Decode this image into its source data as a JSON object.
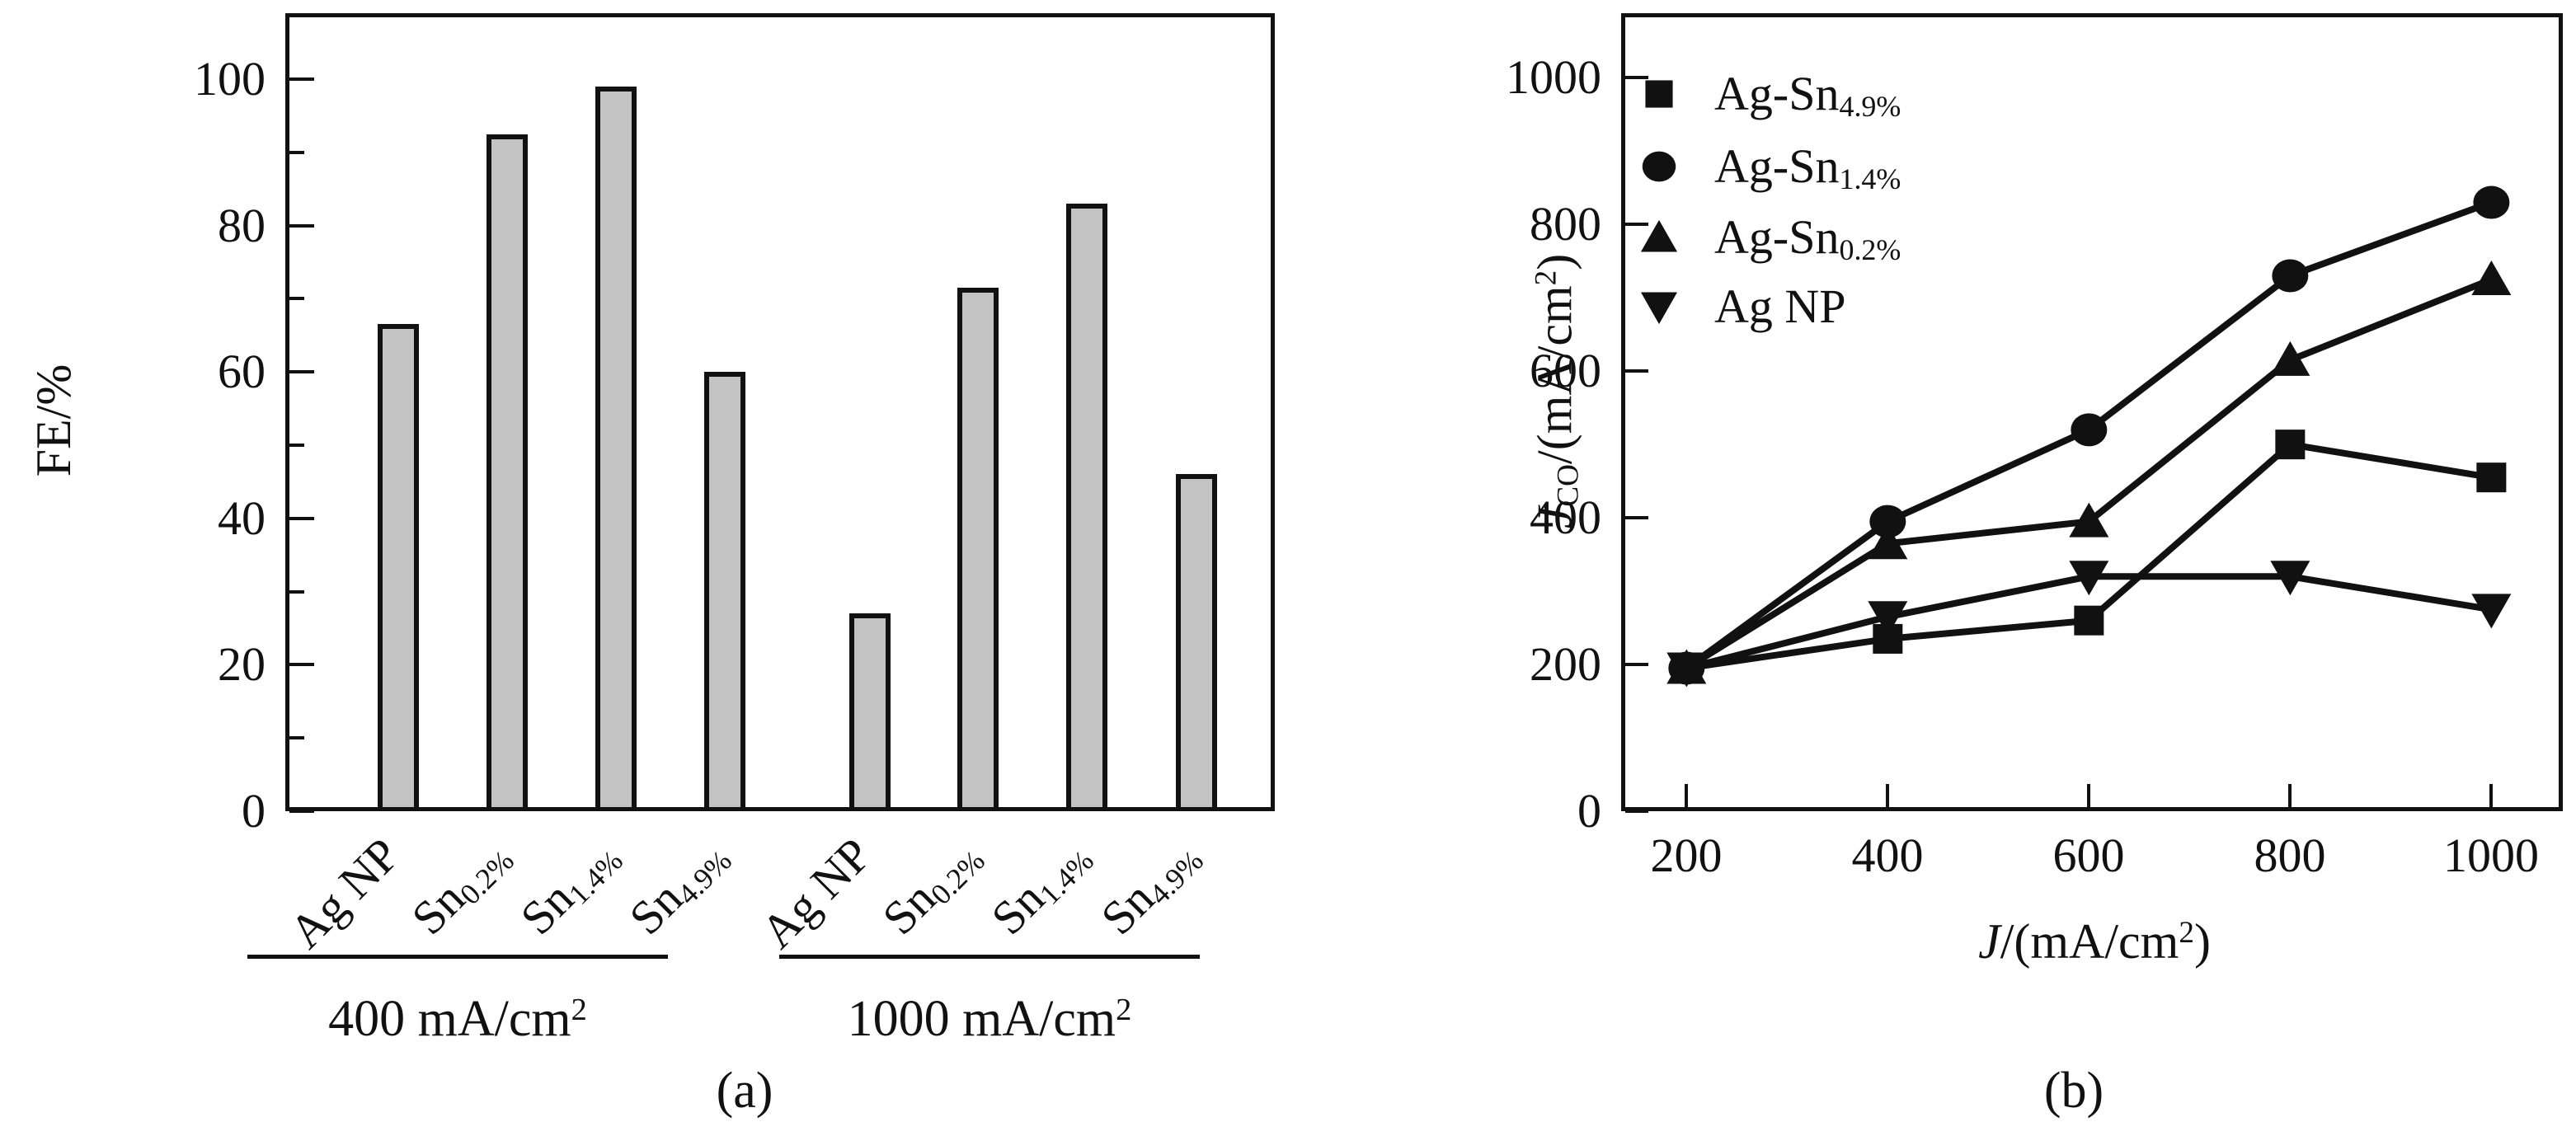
{
  "figure": {
    "background": "#ffffff",
    "ink_color": "#111111",
    "bar_fill_color": "#c3c3c3"
  },
  "chart_data": [
    {
      "type": "bar",
      "panel": "a",
      "title": "",
      "ylabel": "FE/%",
      "xlabel": "",
      "ylim": [
        0,
        109
      ],
      "yticks": [
        0,
        20,
        40,
        60,
        80,
        100
      ],
      "minor_yticks": [
        10,
        30,
        50,
        70,
        90
      ],
      "grid": false,
      "categories": [
        "Ag NP",
        "Sn0.2%",
        "Sn1.4%",
        "Sn4.9%",
        "Ag NP",
        "Sn0.2%",
        "Sn1.4%",
        "Sn4.9%"
      ],
      "categories_rich": [
        {
          "base": "Ag NP",
          "sub": ""
        },
        {
          "base": "Sn",
          "sub": "0.2%"
        },
        {
          "base": "Sn",
          "sub": "1.4%"
        },
        {
          "base": "Sn",
          "sub": "4.9%"
        },
        {
          "base": "Ag NP",
          "sub": ""
        },
        {
          "base": "Sn",
          "sub": "0.2%"
        },
        {
          "base": "Sn",
          "sub": "1.4%"
        },
        {
          "base": "Sn",
          "sub": "4.9%"
        }
      ],
      "values": [
        66.5,
        92.5,
        99,
        60,
        27,
        71.5,
        83,
        46
      ],
      "groups": [
        {
          "label": "400 mA/cm2",
          "label_parts": [
            {
              "t": "400 mA/cm"
            },
            {
              "t": "2",
              "style": "sup"
            }
          ],
          "bar_indexes": [
            0,
            1,
            2,
            3
          ]
        },
        {
          "label": "1000 mA/cm2",
          "label_parts": [
            {
              "t": "1000 mA/cm"
            },
            {
              "t": "2",
              "style": "sup"
            }
          ],
          "bar_indexes": [
            4,
            5,
            6,
            7
          ]
        }
      ],
      "caption": "(a)"
    },
    {
      "type": "line",
      "panel": "b",
      "title": "",
      "xlabel": "J/(mA/cm2)",
      "xlabel_parts": [
        {
          "t": "J",
          "style": "italic"
        },
        {
          "t": "/(mA/cm"
        },
        {
          "t": "2",
          "style": "sup"
        },
        {
          "t": ")"
        }
      ],
      "ylabel": "JCO/(mA/cm2)",
      "ylabel_parts": [
        {
          "t": "J",
          "style": "italic"
        },
        {
          "t": "CO",
          "style": "sub"
        },
        {
          "t": "/(mA/cm"
        },
        {
          "t": "2",
          "style": "sup"
        },
        {
          "t": ")"
        }
      ],
      "xlim": [
        135,
        1071
      ],
      "ylim": [
        0,
        1088
      ],
      "xticks": [
        200,
        400,
        600,
        800,
        1000
      ],
      "yticks": [
        0,
        200,
        400,
        600,
        800,
        1000
      ],
      "grid": false,
      "legend_position": "upper-left",
      "x": [
        200,
        400,
        600,
        800,
        1000
      ],
      "series": [
        {
          "name": "Ag-Sn4.9%",
          "name_base": "Ag-Sn",
          "name_sub": "4.9%",
          "marker": "square",
          "values": [
            195,
            235,
            260,
            500,
            455
          ]
        },
        {
          "name": "Ag-Sn1.4%",
          "name_base": "Ag-Sn",
          "name_sub": "1.4%",
          "marker": "circle",
          "values": [
            195,
            395,
            520,
            730,
            830
          ]
        },
        {
          "name": "Ag-Sn0.2%",
          "name_base": "Ag-Sn",
          "name_sub": "0.2%",
          "marker": "triangle-up",
          "values": [
            195,
            365,
            395,
            615,
            725
          ]
        },
        {
          "name": "Ag NP",
          "name_base": "Ag NP",
          "name_sub": "",
          "marker": "triangle-down",
          "values": [
            195,
            265,
            320,
            320,
            275
          ]
        }
      ],
      "caption": "(b)"
    }
  ]
}
